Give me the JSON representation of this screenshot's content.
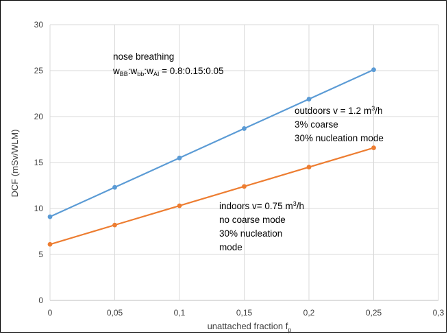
{
  "chart_data": {
    "type": "line",
    "title": "",
    "xlabel": {
      "main": "unattached fraction f",
      "sub": "p"
    },
    "ylabel": "DCF (mSv/WLM)",
    "xlim": [
      0,
      0.3
    ],
    "ylim": [
      0,
      30
    ],
    "grid": true,
    "legend": "none",
    "x_ticks": [
      "0",
      "0,05",
      "0,1",
      "0,15",
      "0,2",
      "0,25",
      "0,3"
    ],
    "y_ticks": [
      "0",
      "5",
      "10",
      "15",
      "20",
      "25",
      "30"
    ],
    "x": [
      0,
      0.05,
      0.1,
      0.15,
      0.2,
      0.25
    ],
    "series": [
      {
        "color": "#5B9BD5",
        "values": [
          9.1,
          12.3,
          15.5,
          18.7,
          21.9,
          25.1
        ]
      },
      {
        "color": "#ED7D31",
        "values": [
          6.1,
          8.2,
          10.3,
          12.4,
          14.5,
          16.6
        ]
      }
    ],
    "annotations": {
      "nose_title": "nose breathing",
      "ratio": {
        "w": "w",
        "bb_upper": "BB",
        "sep": ":",
        "bb_lower": "bb",
        "ai": "AI",
        "value": " = 0.8:0.15:0.05"
      },
      "outdoors": {
        "line1_pre": "outdoors v = 1.2 m",
        "sup": "3",
        "line1_post": "/h",
        "line2": "3% coarse",
        "line3": "30% nucleation mode"
      },
      "indoors": {
        "line1_pre": "indoors  v= 0.75 m",
        "sup": "3",
        "line1_post": "/h",
        "line2": "no coarse mode",
        "line3": "30% nucleation",
        "line4": "mode"
      }
    }
  }
}
